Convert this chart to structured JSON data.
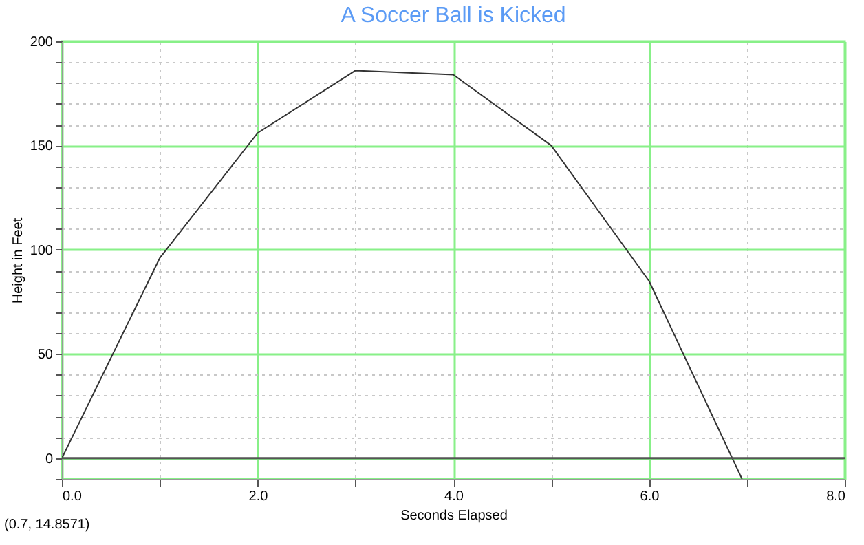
{
  "chart_data": {
    "type": "line",
    "title": "A Soccer Ball is Kicked",
    "xlabel": "Seconds Elapsed",
    "ylabel": "Height in Feet",
    "annotations": [
      "(0.7, 14.8571)"
    ],
    "x": [
      0,
      1,
      2,
      3,
      4,
      5,
      6,
      6.95
    ],
    "series": [
      {
        "color": "#333333",
        "values": [
          0,
          96,
          156,
          186,
          184,
          150,
          85,
          -10
        ]
      }
    ],
    "xlim": [
      0,
      8
    ],
    "ylim": [
      -10,
      200
    ],
    "xticks": [
      {
        "value": 0,
        "label": "0.0"
      },
      {
        "value": 1,
        "label": null
      },
      {
        "value": 2,
        "label": "2.0"
      },
      {
        "value": 3,
        "label": null
      },
      {
        "value": 4,
        "label": "4.0"
      },
      {
        "value": 5,
        "label": null
      },
      {
        "value": 6,
        "label": "6.0"
      },
      {
        "value": 7,
        "label": null
      },
      {
        "value": 8,
        "label": "8.0"
      }
    ],
    "yticks": [
      {
        "value": -10,
        "label": null
      },
      0,
      {
        "value": 10,
        "label": null
      },
      {
        "value": 20,
        "label": null
      },
      {
        "value": 30,
        "label": null
      },
      {
        "value": 40,
        "label": null
      },
      50,
      {
        "value": 60,
        "label": null
      },
      {
        "value": 70,
        "label": null
      },
      {
        "value": 80,
        "label": null
      },
      {
        "value": 90,
        "label": null
      },
      100,
      {
        "value": 110,
        "label": null
      },
      {
        "value": 120,
        "label": null
      },
      {
        "value": 130,
        "label": null
      },
      {
        "value": 140,
        "label": null
      },
      150,
      {
        "value": 160,
        "label": null
      },
      {
        "value": 170,
        "label": null
      },
      {
        "value": 180,
        "label": null
      },
      {
        "value": 190,
        "label": null
      },
      200
    ],
    "ref_lines": [
      {
        "axis": "y",
        "value": 0,
        "color": "#555555"
      }
    ],
    "grid": true,
    "marker": "none"
  }
}
